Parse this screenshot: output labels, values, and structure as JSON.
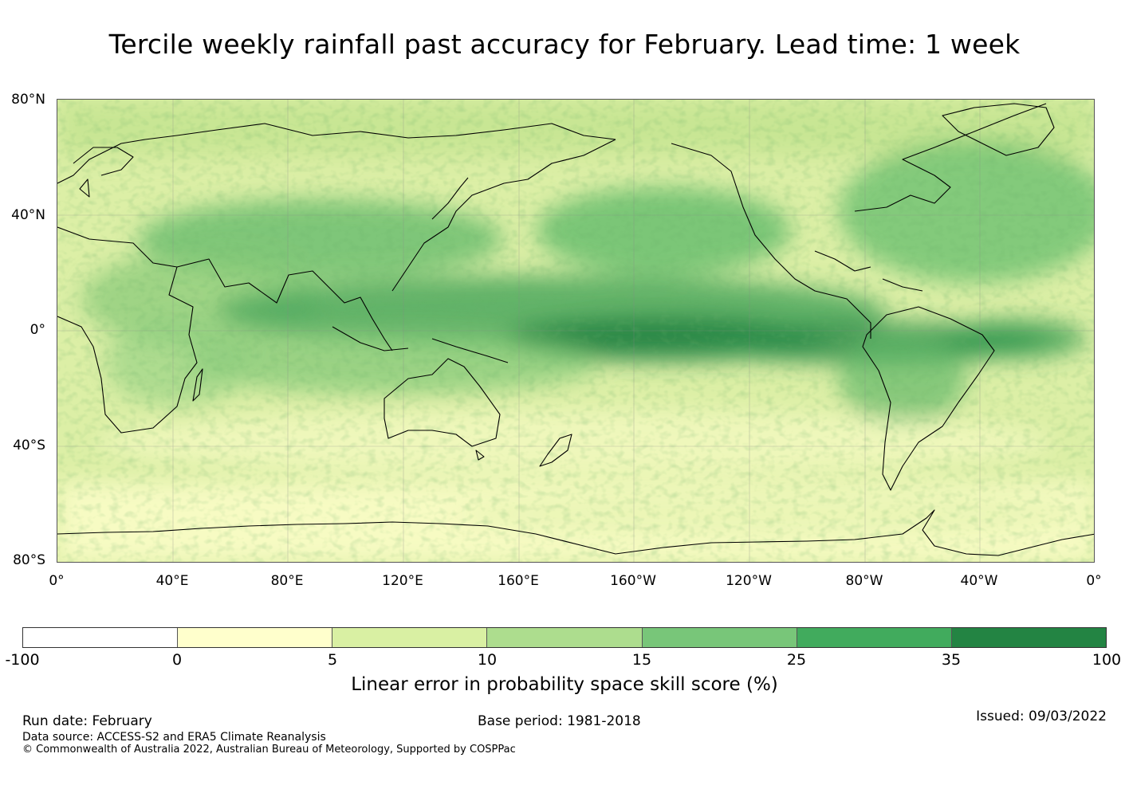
{
  "title": "Tercile weekly rainfall past accuracy for February. Lead time: 1 week",
  "map": {
    "lat_labels": [
      "80°N",
      "40°N",
      "0°",
      "40°S",
      "80°S"
    ],
    "lon_labels": [
      "0°",
      "40°E",
      "80°E",
      "120°E",
      "160°E",
      "160°W",
      "120°W",
      "80°W",
      "40°W",
      "0°"
    ]
  },
  "colorbar": {
    "ticks": [
      "-100",
      "0",
      "5",
      "10",
      "15",
      "25",
      "35",
      "100"
    ],
    "colors": [
      "#ffffff",
      "#ffffcc",
      "#d9f0a3",
      "#addd8e",
      "#78c679",
      "#41ab5d",
      "#238443"
    ],
    "title": "Linear error in probability space skill score (%)"
  },
  "footer": {
    "run_date": "Run date: February",
    "base_period": "Base period: 1981-2018",
    "issued": "Issued: 09/03/2022",
    "data_source": "Data source: ACCESS-S2 and ERA5 Climate Reanalysis",
    "copyright": "© Commonwealth of Australia 2022, Australian Bureau of Meteorology, Supported by COSPPac"
  }
}
